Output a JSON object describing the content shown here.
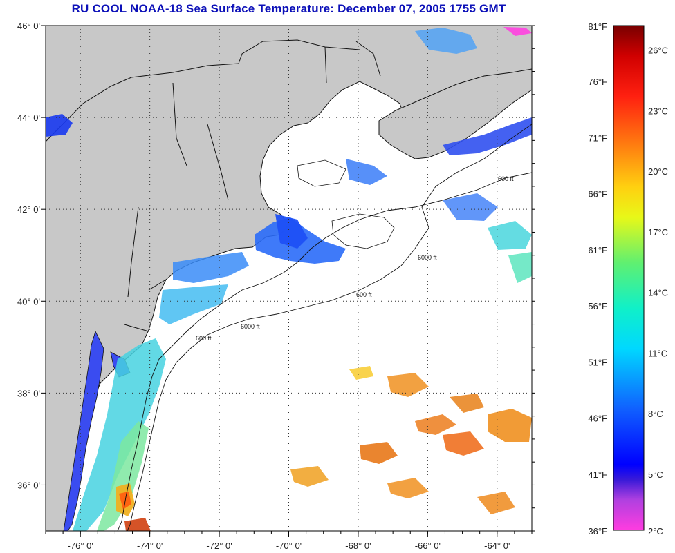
{
  "title": "RU COOL  NOAA-18  Sea Surface Temperature:  December 07, 2005 1755 GMT",
  "map": {
    "lon_range": [
      -77.0,
      -63.0
    ],
    "lat_range": [
      35.0,
      46.0
    ],
    "lat_ticks": [
      {
        "value": 46,
        "label": "46° 0'"
      },
      {
        "value": 44,
        "label": "44° 0'"
      },
      {
        "value": 42,
        "label": "42° 0'"
      },
      {
        "value": 40,
        "label": "40° 0'"
      },
      {
        "value": 38,
        "label": "38° 0'"
      },
      {
        "value": 36,
        "label": "36° 0'"
      }
    ],
    "lon_ticks": [
      {
        "value": -76,
        "label": "-76° 0'"
      },
      {
        "value": -74,
        "label": "-74° 0'"
      },
      {
        "value": -72,
        "label": "-72° 0'"
      },
      {
        "value": -70,
        "label": "-70° 0'"
      },
      {
        "value": -68,
        "label": "-68° 0'"
      },
      {
        "value": -66,
        "label": "-66° 0'"
      },
      {
        "value": -64,
        "label": "-64° 0'"
      }
    ],
    "grid": true,
    "land_color": "#c8c8c8",
    "isobath_labels": [
      "600 ft",
      "6000 ft"
    ]
  },
  "colorbar": {
    "fahrenheit": [
      {
        "value": 81,
        "label": "81°F"
      },
      {
        "value": 76,
        "label": "76°F"
      },
      {
        "value": 71,
        "label": "71°F"
      },
      {
        "value": 66,
        "label": "66°F"
      },
      {
        "value": 61,
        "label": "61°F"
      },
      {
        "value": 56,
        "label": "56°F"
      },
      {
        "value": 51,
        "label": "51°F"
      },
      {
        "value": 46,
        "label": "46°F"
      },
      {
        "value": 41,
        "label": "41°F"
      },
      {
        "value": 36,
        "label": "36°F"
      }
    ],
    "celsius": [
      {
        "value": 26,
        "label": "26°C"
      },
      {
        "value": 23,
        "label": "23°C"
      },
      {
        "value": 20,
        "label": "20°C"
      },
      {
        "value": 17,
        "label": "17°C"
      },
      {
        "value": 14,
        "label": "14°C"
      },
      {
        "value": 11,
        "label": "11°C"
      },
      {
        "value": 8,
        "label": "8°C"
      },
      {
        "value": 5,
        "label": "5°C"
      },
      {
        "value": 2,
        "label": "2°C"
      }
    ]
  }
}
